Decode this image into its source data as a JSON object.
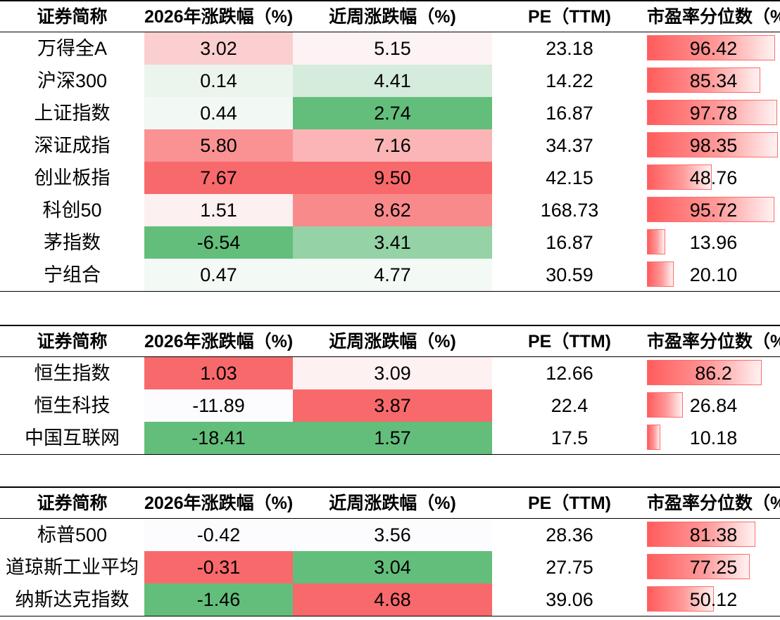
{
  "headers": {
    "name": "证券简称",
    "ytd": "2026年涨跌幅（%)",
    "week": "近周涨跌幅（%)",
    "pe": "PE（TTM)",
    "pct": "市盈率分位数（%)"
  },
  "tables": [
    {
      "rows": [
        {
          "name": "万得全A",
          "ytd": "3.02",
          "week": "5.15",
          "pe": "23.18",
          "pct": "96.42",
          "pct_value": 96.42,
          "ytd_color": "#fbcfd0",
          "week_color": "#fdf3f4"
        },
        {
          "name": "沪深300",
          "ytd": "0.14",
          "week": "4.41",
          "pe": "14.22",
          "pct": "85.34",
          "pct_value": 85.34,
          "ytd_color": "#ebf5ee",
          "week_color": "#d5ebdc"
        },
        {
          "name": "上证指数",
          "ytd": "0.44",
          "week": "2.74",
          "pe": "16.87",
          "pct": "97.78",
          "pct_value": 97.78,
          "ytd_color": "#f2f8f4",
          "week_color": "#63be7b"
        },
        {
          "name": "深证成指",
          "ytd": "5.80",
          "week": "7.16",
          "pe": "34.37",
          "pct": "98.35",
          "pct_value": 98.35,
          "ytd_color": "#fa9293",
          "week_color": "#fbb5b6"
        },
        {
          "name": "创业板指",
          "ytd": "7.67",
          "week": "9.50",
          "pe": "42.15",
          "pct": "48.76",
          "pct_value": 48.76,
          "ytd_color": "#f8696b",
          "week_color": "#f8696b"
        },
        {
          "name": "科创50",
          "ytd": "1.51",
          "week": "8.62",
          "pe": "168.73",
          "pct": "95.72",
          "pct_value": 95.72,
          "ytd_color": "#fcf0f1",
          "week_color": "#f98a8c"
        },
        {
          "name": "茅指数",
          "ytd": "-6.54",
          "week": "3.41",
          "pe": "16.87",
          "pct": "13.96",
          "pct_value": 13.96,
          "ytd_color": "#63be7b",
          "week_color": "#95d2a5"
        },
        {
          "name": "宁组合",
          "ytd": "0.47",
          "week": "4.77",
          "pe": "30.59",
          "pct": "20.10",
          "pct_value": 20.1,
          "ytd_color": "#f3f9f5",
          "week_color": "#f3f9f5"
        }
      ]
    },
    {
      "rows": [
        {
          "name": "恒生指数",
          "ytd": "1.03",
          "week": "3.09",
          "pe": "12.66",
          "pct": "86.2",
          "pct_value": 86.2,
          "ytd_color": "#f8696b",
          "week_color": "#fdf1f2"
        },
        {
          "name": "恒生科技",
          "ytd": "-11.89",
          "week": "3.87",
          "pe": "22.4",
          "pct": "26.84",
          "pct_value": 26.84,
          "ytd_color": "#fcfcff",
          "week_color": "#f8696b"
        },
        {
          "name": "中国互联网",
          "ytd": "-18.41",
          "week": "1.57",
          "pe": "17.5",
          "pct": "10.18",
          "pct_value": 10.18,
          "ytd_color": "#63be7b",
          "week_color": "#63be7b"
        }
      ]
    },
    {
      "rows": [
        {
          "name": "标普500",
          "ytd": "-0.42",
          "week": "3.56",
          "pe": "28.36",
          "pct": "81.38",
          "pct_value": 81.38,
          "ytd_color": "#fcfcff",
          "week_color": "#fcfcff"
        },
        {
          "name": "道琼斯工业平均",
          "ytd": "-0.31",
          "week": "3.04",
          "pe": "27.75",
          "pct": "77.25",
          "pct_value": 77.25,
          "ytd_color": "#f8696b",
          "week_color": "#63be7b"
        },
        {
          "name": "纳斯达克指数",
          "ytd": "-1.46",
          "week": "4.68",
          "pe": "39.06",
          "pct": "50.12",
          "pct_value": 50.12,
          "ytd_color": "#63be7b",
          "week_color": "#f8696b"
        }
      ]
    }
  ]
}
